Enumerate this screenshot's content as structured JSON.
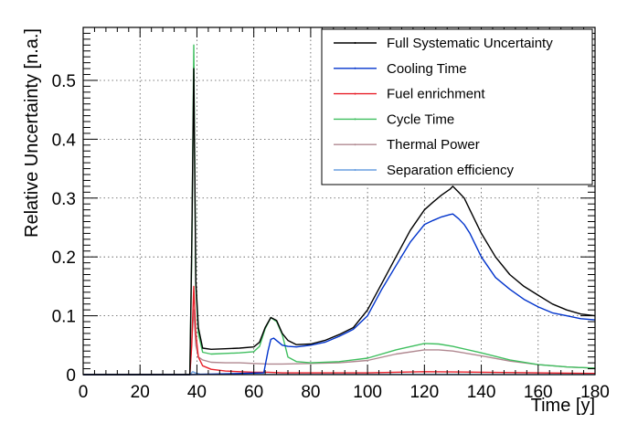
{
  "chart_data": {
    "type": "line",
    "title": "",
    "xlabel": "Time [y]",
    "ylabel": "Relative Uncertainty [n.a.]",
    "xlim": [
      0,
      180
    ],
    "ylim": [
      0,
      0.59
    ],
    "xticks": [
      "0",
      "20",
      "40",
      "60",
      "80",
      "100",
      "120",
      "140",
      "160",
      "180"
    ],
    "yticks": [
      "0",
      "0.1",
      "0.2",
      "0.3",
      "0.4",
      "0.5"
    ],
    "grid": true,
    "legend_position": "top-right",
    "series": [
      {
        "name": "Full Systematic Uncertainty",
        "color": "#000000",
        "x": [
          0,
          37.5,
          38.2,
          38.9,
          39.6,
          40.5,
          42,
          45,
          50,
          55,
          60,
          62,
          64,
          66,
          68,
          70,
          72,
          75,
          80,
          85,
          90,
          95,
          100,
          105,
          110,
          115,
          120,
          123,
          126,
          129,
          130,
          132,
          134,
          136,
          140,
          145,
          150,
          155,
          160,
          165,
          170,
          175,
          180
        ],
        "values": [
          0,
          0,
          0.22,
          0.52,
          0.16,
          0.08,
          0.045,
          0.043,
          0.044,
          0.045,
          0.047,
          0.055,
          0.08,
          0.097,
          0.092,
          0.07,
          0.058,
          0.051,
          0.052,
          0.058,
          0.068,
          0.08,
          0.11,
          0.155,
          0.2,
          0.245,
          0.28,
          0.293,
          0.305,
          0.315,
          0.32,
          0.31,
          0.3,
          0.28,
          0.24,
          0.2,
          0.17,
          0.15,
          0.135,
          0.12,
          0.11,
          0.103,
          0.1
        ]
      },
      {
        "name": "Cooling Time",
        "color": "#0033cc",
        "x": [
          0,
          37.5,
          63.5,
          64,
          65,
          66,
          67,
          70,
          72,
          75,
          80,
          85,
          90,
          95,
          100,
          105,
          110,
          115,
          120,
          123,
          126,
          129,
          130,
          132,
          134,
          136,
          140,
          145,
          150,
          155,
          160,
          165,
          170,
          175,
          180
        ],
        "values": [
          0,
          0,
          0.003,
          0.015,
          0.04,
          0.06,
          0.062,
          0.05,
          0.048,
          0.047,
          0.05,
          0.055,
          0.065,
          0.077,
          0.1,
          0.145,
          0.185,
          0.225,
          0.255,
          0.262,
          0.268,
          0.272,
          0.273,
          0.265,
          0.255,
          0.24,
          0.2,
          0.165,
          0.145,
          0.128,
          0.115,
          0.105,
          0.1,
          0.095,
          0.093
        ]
      },
      {
        "name": "Fuel enrichment",
        "color": "#e8202a",
        "x": [
          0,
          37.5,
          38.2,
          38.9,
          39.6,
          40.5,
          42,
          45,
          50,
          55,
          60,
          65,
          70,
          80,
          90,
          100,
          120,
          140,
          160,
          180
        ],
        "values": [
          0,
          0,
          0.05,
          0.15,
          0.07,
          0.03,
          0.015,
          0.009,
          0.006,
          0.005,
          0.004,
          0.004,
          0.003,
          0.003,
          0.003,
          0.003,
          0.005,
          0.004,
          0.003,
          0.002
        ]
      },
      {
        "name": "Cycle Time",
        "color": "#3fbf5f",
        "x": [
          0,
          37.5,
          38.2,
          38.9,
          39.6,
          40.5,
          42,
          45,
          50,
          55,
          60,
          62,
          64,
          66,
          68,
          70,
          72,
          75,
          80,
          90,
          100,
          110,
          120,
          125,
          130,
          140,
          150,
          160,
          170,
          180
        ],
        "values": [
          0,
          0,
          0.2,
          0.56,
          0.15,
          0.07,
          0.038,
          0.035,
          0.036,
          0.037,
          0.039,
          0.048,
          0.078,
          0.097,
          0.09,
          0.068,
          0.03,
          0.022,
          0.02,
          0.022,
          0.028,
          0.042,
          0.053,
          0.052,
          0.048,
          0.037,
          0.025,
          0.017,
          0.013,
          0.011
        ]
      },
      {
        "name": "Thermal Power",
        "color": "#b08890",
        "x": [
          0,
          37.5,
          38.2,
          38.9,
          39.6,
          40.5,
          42,
          45,
          50,
          55,
          60,
          65,
          70,
          80,
          90,
          100,
          110,
          120,
          125,
          130,
          140,
          150,
          160,
          170,
          180
        ],
        "values": [
          0,
          0,
          0.06,
          0.11,
          0.05,
          0.03,
          0.025,
          0.021,
          0.02,
          0.02,
          0.019,
          0.018,
          0.018,
          0.019,
          0.02,
          0.024,
          0.035,
          0.042,
          0.042,
          0.04,
          0.032,
          0.023,
          0.017,
          0.013,
          0.011
        ]
      },
      {
        "name": "Separation efficiency",
        "color": "#6a9fe0",
        "x": [
          0,
          37.5,
          38.5,
          39.5,
          41,
          45,
          60,
          100,
          140,
          180
        ],
        "values": [
          0,
          0,
          0.005,
          0.003,
          0.001,
          0.0005,
          0.0003,
          0.0003,
          0.0002,
          0.0001
        ]
      }
    ]
  }
}
